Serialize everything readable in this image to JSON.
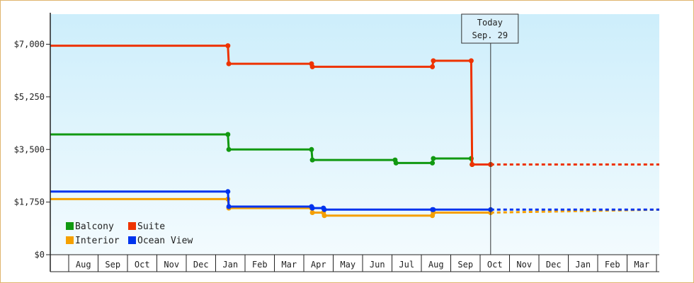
{
  "chart_data": {
    "type": "line",
    "step": true,
    "y_ticks": [
      "$0",
      "$1,750",
      "$3,500",
      "$5,250",
      "$7,000"
    ],
    "ylim": [
      0,
      8000
    ],
    "month_labels": [
      "Aug",
      "Sep",
      "Oct",
      "Nov",
      "Dec",
      "Jan",
      "Feb",
      "Mar",
      "Apr",
      "May",
      "Jun",
      "Jul",
      "Aug",
      "Sep",
      "Oct",
      "Nov",
      "Dec",
      "Jan",
      "Feb",
      "Mar"
    ],
    "xlim": [
      -0.8,
      19.6
    ],
    "today": {
      "line1": "Today",
      "line2": "Sep. 29",
      "x": 13.95
    },
    "grid": false,
    "legend_position": "bottom-left",
    "colors": {
      "Balcony": "#119911",
      "Suite": "#ee3300",
      "Interior": "#f5a000",
      "Ocean View": "#0033ee"
    },
    "series": [
      {
        "name": "Balcony",
        "points": [
          [
            -0.8,
            4000
          ],
          [
            5.15,
            4000
          ],
          [
            5.18,
            3500
          ],
          [
            7.95,
            3500
          ],
          [
            7.98,
            3150
          ],
          [
            10.75,
            3150
          ],
          [
            10.78,
            3050
          ],
          [
            12.0,
            3050
          ],
          [
            12.03,
            3200
          ],
          [
            13.3,
            3200
          ],
          [
            13.33,
            3000
          ],
          [
            13.95,
            3000
          ]
        ],
        "forecast": []
      },
      {
        "name": "Suite",
        "points": [
          [
            -0.8,
            6950
          ],
          [
            5.15,
            6950
          ],
          [
            5.18,
            6350
          ],
          [
            7.95,
            6350
          ],
          [
            7.98,
            6250
          ],
          [
            12.0,
            6250
          ],
          [
            12.03,
            6450
          ],
          [
            13.3,
            6450
          ],
          [
            13.33,
            3000
          ],
          [
            13.95,
            3000
          ]
        ],
        "forecast": [
          [
            13.95,
            3000
          ],
          [
            19.6,
            3000
          ]
        ]
      },
      {
        "name": "Interior",
        "points": [
          [
            -0.8,
            1850
          ],
          [
            5.15,
            1850
          ],
          [
            5.18,
            1550
          ],
          [
            7.95,
            1550
          ],
          [
            7.98,
            1400
          ],
          [
            8.35,
            1400
          ],
          [
            8.38,
            1300
          ],
          [
            12.0,
            1300
          ],
          [
            12.03,
            1400
          ],
          [
            13.95,
            1400
          ]
        ],
        "forecast": [
          [
            13.95,
            1400
          ],
          [
            19.6,
            1500
          ]
        ]
      },
      {
        "name": "Ocean View",
        "points": [
          [
            -0.8,
            2100
          ],
          [
            5.15,
            2100
          ],
          [
            5.18,
            1600
          ],
          [
            7.95,
            1600
          ],
          [
            7.98,
            1550
          ],
          [
            8.35,
            1550
          ],
          [
            8.38,
            1500
          ],
          [
            12.0,
            1500
          ],
          [
            12.03,
            1500
          ],
          [
            13.95,
            1500
          ]
        ],
        "forecast": [
          [
            13.95,
            1500
          ],
          [
            19.6,
            1500
          ]
        ]
      }
    ],
    "legend": [
      {
        "name": "Balcony",
        "color": "#119911"
      },
      {
        "name": "Suite",
        "color": "#ee3300"
      },
      {
        "name": "Interior",
        "color": "#f5a000"
      },
      {
        "name": "Ocean View",
        "color": "#0033ee"
      }
    ]
  }
}
